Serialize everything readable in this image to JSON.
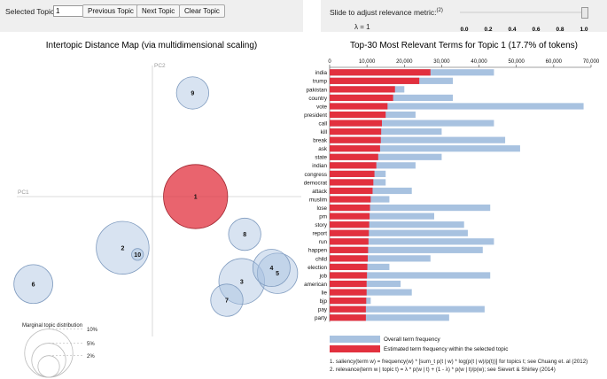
{
  "controls": {
    "selected_label": "Selected Topic:",
    "topic_value": "1",
    "prev_label": "Previous Topic",
    "next_label": "Next Topic",
    "clear_label": "Clear Topic",
    "slider_label": "Slide to adjust relevance metric:",
    "slider_sup": "(2)",
    "lambda_text": "λ = 1",
    "lambda_value": 1.0,
    "slider_ticks": [
      "0.0",
      "0.2",
      "0.4",
      "0.6",
      "0.8",
      "1.0"
    ]
  },
  "left_panel": {
    "title": "Intertopic Distance Map (via multidimensional scaling)",
    "pc1": "PC1",
    "pc2": "PC2",
    "marginal_title": "Marginal topic distribution",
    "size_labels": [
      "2%",
      "5%",
      "10%"
    ]
  },
  "chart_data": {
    "type": "bar",
    "title": "Top-30 Most Relevant Terms for Topic 1 (17.7% of tokens)",
    "xlim": [
      0,
      70000
    ],
    "xticks": [
      "0",
      "10,000",
      "20,000",
      "30,000",
      "40,000",
      "50,000",
      "60,000",
      "70,000"
    ],
    "categories": [
      "india",
      "trump",
      "pakistan",
      "country",
      "vote",
      "president",
      "call",
      "kill",
      "break",
      "ask",
      "state",
      "indian",
      "congress",
      "democrat",
      "attack",
      "muslim",
      "lose",
      "pm",
      "story",
      "report",
      "run",
      "happen",
      "child",
      "election",
      "job",
      "american",
      "lie",
      "bjp",
      "pay",
      "party"
    ],
    "series": [
      {
        "name": "Overall term frequency",
        "color": "#a8c2e0",
        "values": [
          44000,
          33000,
          20000,
          33000,
          68000,
          23000,
          44000,
          30000,
          47000,
          51000,
          30000,
          23000,
          15000,
          15000,
          22000,
          16000,
          43000,
          28000,
          36000,
          37000,
          44000,
          41000,
          27000,
          16000,
          43000,
          19000,
          22000,
          11000,
          41500,
          32000
        ]
      },
      {
        "name": "Estimated term frequency within the selected topic",
        "color": "#e2303e",
        "values": [
          27000,
          24000,
          17500,
          17000,
          15500,
          15000,
          14000,
          13800,
          13700,
          13500,
          13000,
          12500,
          12000,
          11700,
          11500,
          11000,
          10800,
          10700,
          10600,
          10500,
          10400,
          10300,
          10200,
          10100,
          10000,
          9900,
          9900,
          9800,
          9700,
          9700
        ]
      }
    ],
    "legend": [
      "Overall term frequency",
      "Estimated term frequency within the selected topic"
    ],
    "footnotes": [
      "1. saliency(term w) = frequency(w) * [sum_t p(t | w) * log(p(t | w)/p(t))] for topics t; see Chuang et. al (2012)",
      "2. relevance(term w | topic t) = λ * p(w | t) + (1 - λ) * p(w | t)/p(w); see Sievert & Shirley (2014)"
    ]
  },
  "topic_map": {
    "type": "scatter",
    "xlim": [
      -1,
      1
    ],
    "ylim": [
      -1,
      1
    ],
    "selected": "1",
    "topics": [
      {
        "label": "1",
        "x": 0.29,
        "y": 0.0,
        "share": 17.7
      },
      {
        "label": "2",
        "x": -0.2,
        "y": -0.38,
        "share": 12
      },
      {
        "label": "3",
        "x": 0.6,
        "y": -0.63,
        "share": 9
      },
      {
        "label": "4",
        "x": 0.8,
        "y": -0.53,
        "share": 6
      },
      {
        "label": "5",
        "x": 0.84,
        "y": -0.57,
        "share": 7
      },
      {
        "label": "6",
        "x": -0.8,
        "y": -0.65,
        "share": 6.5
      },
      {
        "label": "7",
        "x": 0.5,
        "y": -0.77,
        "share": 4.5
      },
      {
        "label": "8",
        "x": 0.62,
        "y": -0.28,
        "share": 4.5
      },
      {
        "label": "9",
        "x": 0.27,
        "y": 0.77,
        "share": 4.5
      },
      {
        "label": "10",
        "x": -0.1,
        "y": -0.43,
        "share": 0.6
      }
    ]
  }
}
